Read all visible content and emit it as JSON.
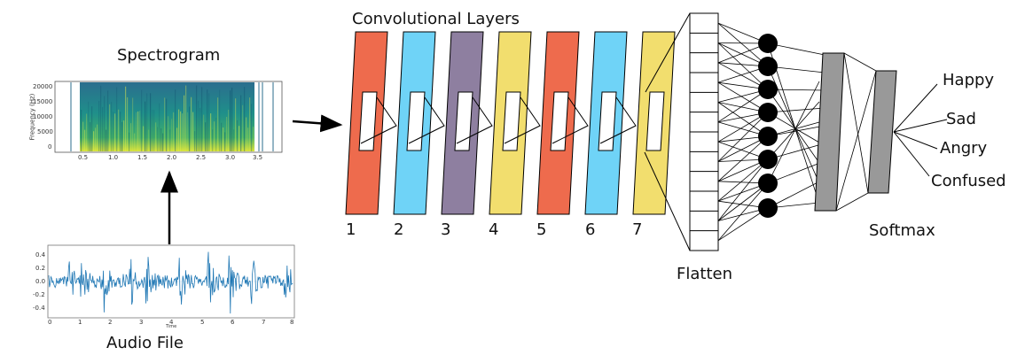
{
  "spectrogram": {
    "title": "Spectrogram",
    "y_axis_label": "Frequency (Hz)",
    "y_ticks": [
      "20000",
      "15000",
      "10000",
      "5000",
      "0"
    ],
    "x_ticks": [
      "0.5",
      "1.0",
      "1.5",
      "2.0",
      "2.5",
      "3.0",
      "3.5"
    ]
  },
  "audio": {
    "title": "Audio File",
    "y_ticks": [
      "0.4",
      "0.2",
      "0.0",
      "-0.2",
      "-0.4"
    ],
    "x_ticks": [
      "0",
      "1",
      "2",
      "3",
      "4",
      "5",
      "6",
      "7",
      "8"
    ],
    "x_axis_label": "Time"
  },
  "conv": {
    "title": "Convolutional Layers",
    "layers": [
      {
        "label": "1",
        "color": "#EE6B4D"
      },
      {
        "label": "2",
        "color": "#6FD3F7"
      },
      {
        "label": "3",
        "color": "#8E7FA0"
      },
      {
        "label": "4",
        "color": "#F2DE6E"
      },
      {
        "label": "5",
        "color": "#EE6B4D"
      },
      {
        "label": "6",
        "color": "#6FD3F7"
      },
      {
        "label": "7",
        "color": "#F2DE6E"
      }
    ]
  },
  "flatten": {
    "label": "Flatten"
  },
  "softmax": {
    "label": "Softmax"
  },
  "outputs": [
    "Happy",
    "Sad",
    "Angry",
    "Confused"
  ],
  "colors": {
    "dense": "#999999",
    "node": "#000000",
    "waveform": "#1f77b4"
  }
}
